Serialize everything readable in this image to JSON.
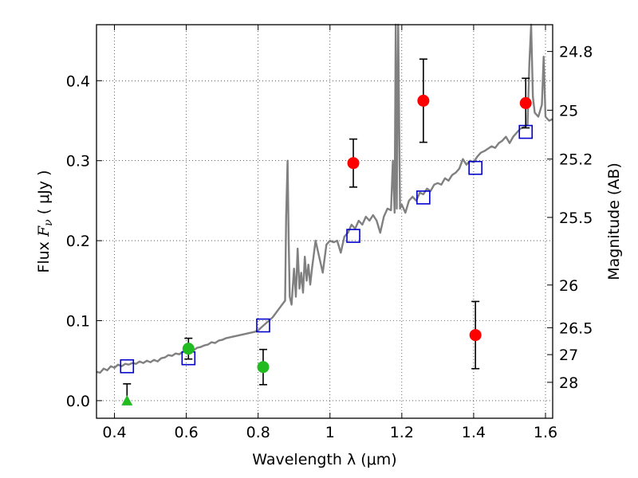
{
  "chart_data": {
    "type": "scatter",
    "xlabel": "Wavelength  λ (μm)",
    "ylabel_prefix": "Flux  ",
    "ylabel_var": "F",
    "ylabel_sub": "ν",
    "ylabel_suffix": "  ( μJy )",
    "y2label": "Magnitude (AB)",
    "xlim": [
      0.35,
      1.62
    ],
    "ylim": [
      -0.022,
      0.47
    ],
    "grid": true,
    "x_ticks": [
      {
        "value": 0.4,
        "label": "0.4"
      },
      {
        "value": 0.6,
        "label": "0.6"
      },
      {
        "value": 0.8,
        "label": "0.8"
      },
      {
        "value": 1.0,
        "label": "1"
      },
      {
        "value": 1.2,
        "label": "1.2"
      },
      {
        "value": 1.4,
        "label": "1.4"
      },
      {
        "value": 1.6,
        "label": "1.6"
      }
    ],
    "y_ticks": [
      {
        "value": 0.0,
        "label": "0.0"
      },
      {
        "value": 0.1,
        "label": "0.1"
      },
      {
        "value": 0.2,
        "label": "0.2"
      },
      {
        "value": 0.3,
        "label": "0.3"
      },
      {
        "value": 0.4,
        "label": "0.4"
      }
    ],
    "mag_ticks": [
      {
        "value": 24.8,
        "label": "24.8"
      },
      {
        "value": 25.0,
        "label": "25"
      },
      {
        "value": 25.2,
        "label": "25.2"
      },
      {
        "value": 25.5,
        "label": "25.5"
      },
      {
        "value": 26.0,
        "label": "26"
      },
      {
        "value": 26.5,
        "label": "26.5"
      },
      {
        "value": 27.0,
        "label": "27"
      },
      {
        "value": 28.0,
        "label": "28"
      }
    ],
    "colors": {
      "model": "#808080",
      "synthetic": "#0000cc",
      "detected": "#ff0000",
      "optical": "#22bb22",
      "errorbar": "#000000"
    },
    "model_sed": [
      [
        0.35,
        0.036
      ],
      [
        0.36,
        0.035
      ],
      [
        0.37,
        0.04
      ],
      [
        0.38,
        0.038
      ],
      [
        0.39,
        0.043
      ],
      [
        0.4,
        0.041
      ],
      [
        0.41,
        0.045
      ],
      [
        0.42,
        0.043
      ],
      [
        0.43,
        0.046
      ],
      [
        0.44,
        0.045
      ],
      [
        0.45,
        0.047
      ],
      [
        0.46,
        0.046
      ],
      [
        0.47,
        0.049
      ],
      [
        0.48,
        0.047
      ],
      [
        0.49,
        0.05
      ],
      [
        0.5,
        0.048
      ],
      [
        0.51,
        0.051
      ],
      [
        0.52,
        0.049
      ],
      [
        0.53,
        0.053
      ],
      [
        0.54,
        0.054
      ],
      [
        0.55,
        0.057
      ],
      [
        0.56,
        0.056
      ],
      [
        0.57,
        0.059
      ],
      [
        0.58,
        0.058
      ],
      [
        0.59,
        0.061
      ],
      [
        0.6,
        0.062
      ],
      [
        0.61,
        0.064
      ],
      [
        0.62,
        0.063
      ],
      [
        0.63,
        0.066
      ],
      [
        0.64,
        0.067
      ],
      [
        0.65,
        0.069
      ],
      [
        0.66,
        0.07
      ],
      [
        0.67,
        0.073
      ],
      [
        0.68,
        0.072
      ],
      [
        0.69,
        0.075
      ],
      [
        0.7,
        0.076
      ],
      [
        0.71,
        0.078
      ],
      [
        0.72,
        0.079
      ],
      [
        0.73,
        0.08
      ],
      [
        0.74,
        0.081
      ],
      [
        0.75,
        0.082
      ],
      [
        0.76,
        0.083
      ],
      [
        0.77,
        0.084
      ],
      [
        0.78,
        0.085
      ],
      [
        0.79,
        0.086
      ],
      [
        0.8,
        0.088
      ],
      [
        0.81,
        0.092
      ],
      [
        0.82,
        0.096
      ],
      [
        0.83,
        0.1
      ],
      [
        0.84,
        0.104
      ],
      [
        0.85,
        0.11
      ],
      [
        0.86,
        0.116
      ],
      [
        0.87,
        0.122
      ],
      [
        0.875,
        0.125
      ],
      [
        0.878,
        0.23
      ],
      [
        0.882,
        0.3
      ],
      [
        0.885,
        0.2
      ],
      [
        0.888,
        0.13
      ],
      [
        0.893,
        0.12
      ],
      [
        0.9,
        0.165
      ],
      [
        0.905,
        0.13
      ],
      [
        0.91,
        0.19
      ],
      [
        0.915,
        0.14
      ],
      [
        0.92,
        0.16
      ],
      [
        0.925,
        0.135
      ],
      [
        0.93,
        0.18
      ],
      [
        0.935,
        0.15
      ],
      [
        0.94,
        0.17
      ],
      [
        0.945,
        0.145
      ],
      [
        0.95,
        0.165
      ],
      [
        0.96,
        0.2
      ],
      [
        0.97,
        0.18
      ],
      [
        0.98,
        0.16
      ],
      [
        0.99,
        0.195
      ],
      [
        1.0,
        0.2
      ],
      [
        1.01,
        0.198
      ],
      [
        1.02,
        0.2
      ],
      [
        1.03,
        0.185
      ],
      [
        1.04,
        0.205
      ],
      [
        1.05,
        0.21
      ],
      [
        1.06,
        0.22
      ],
      [
        1.07,
        0.215
      ],
      [
        1.08,
        0.225
      ],
      [
        1.09,
        0.22
      ],
      [
        1.1,
        0.23
      ],
      [
        1.11,
        0.225
      ],
      [
        1.12,
        0.232
      ],
      [
        1.13,
        0.225
      ],
      [
        1.14,
        0.21
      ],
      [
        1.15,
        0.23
      ],
      [
        1.16,
        0.24
      ],
      [
        1.17,
        0.238
      ],
      [
        1.175,
        0.3
      ],
      [
        1.18,
        0.235
      ],
      [
        1.183,
        0.47
      ],
      [
        1.186,
        0.24
      ],
      [
        1.19,
        0.47
      ],
      [
        1.195,
        0.24
      ],
      [
        1.2,
        0.245
      ],
      [
        1.21,
        0.235
      ],
      [
        1.22,
        0.25
      ],
      [
        1.23,
        0.255
      ],
      [
        1.24,
        0.25
      ],
      [
        1.25,
        0.26
      ],
      [
        1.26,
        0.258
      ],
      [
        1.27,
        0.265
      ],
      [
        1.28,
        0.262
      ],
      [
        1.29,
        0.27
      ],
      [
        1.3,
        0.272
      ],
      [
        1.31,
        0.27
      ],
      [
        1.32,
        0.278
      ],
      [
        1.33,
        0.275
      ],
      [
        1.34,
        0.282
      ],
      [
        1.35,
        0.285
      ],
      [
        1.36,
        0.29
      ],
      [
        1.37,
        0.302
      ],
      [
        1.38,
        0.295
      ],
      [
        1.39,
        0.3
      ],
      [
        1.4,
        0.298
      ],
      [
        1.41,
        0.305
      ],
      [
        1.42,
        0.31
      ],
      [
        1.43,
        0.312
      ],
      [
        1.44,
        0.315
      ],
      [
        1.45,
        0.318
      ],
      [
        1.46,
        0.316
      ],
      [
        1.47,
        0.322
      ],
      [
        1.48,
        0.325
      ],
      [
        1.49,
        0.33
      ],
      [
        1.5,
        0.322
      ],
      [
        1.51,
        0.33
      ],
      [
        1.52,
        0.335
      ],
      [
        1.53,
        0.34
      ],
      [
        1.54,
        0.342
      ],
      [
        1.55,
        0.345
      ],
      [
        1.555,
        0.42
      ],
      [
        1.56,
        0.47
      ],
      [
        1.565,
        0.38
      ],
      [
        1.57,
        0.36
      ],
      [
        1.58,
        0.355
      ],
      [
        1.59,
        0.37
      ],
      [
        1.595,
        0.43
      ],
      [
        1.6,
        0.355
      ],
      [
        1.61,
        0.35
      ],
      [
        1.62,
        0.352
      ]
    ],
    "synthetic_photometry": [
      {
        "x": 0.435,
        "y": 0.043
      },
      {
        "x": 0.606,
        "y": 0.053
      },
      {
        "x": 0.814,
        "y": 0.094
      },
      {
        "x": 1.065,
        "y": 0.206
      },
      {
        "x": 1.26,
        "y": 0.254
      },
      {
        "x": 1.405,
        "y": 0.291
      },
      {
        "x": 1.545,
        "y": 0.336
      }
    ],
    "detected_photometry": [
      {
        "x": 1.065,
        "y": 0.297,
        "err": 0.03
      },
      {
        "x": 1.26,
        "y": 0.375,
        "err": 0.052
      },
      {
        "x": 1.405,
        "y": 0.082,
        "err": 0.042
      },
      {
        "x": 1.545,
        "y": 0.372,
        "err": 0.031
      }
    ],
    "optical_photometry": [
      {
        "x": 0.606,
        "y": 0.065,
        "err": 0.013
      },
      {
        "x": 0.814,
        "y": 0.042,
        "err": 0.022
      }
    ],
    "upper_limits": [
      {
        "x": 0.435,
        "y": 0.0,
        "err_top": 0.021
      }
    ]
  }
}
